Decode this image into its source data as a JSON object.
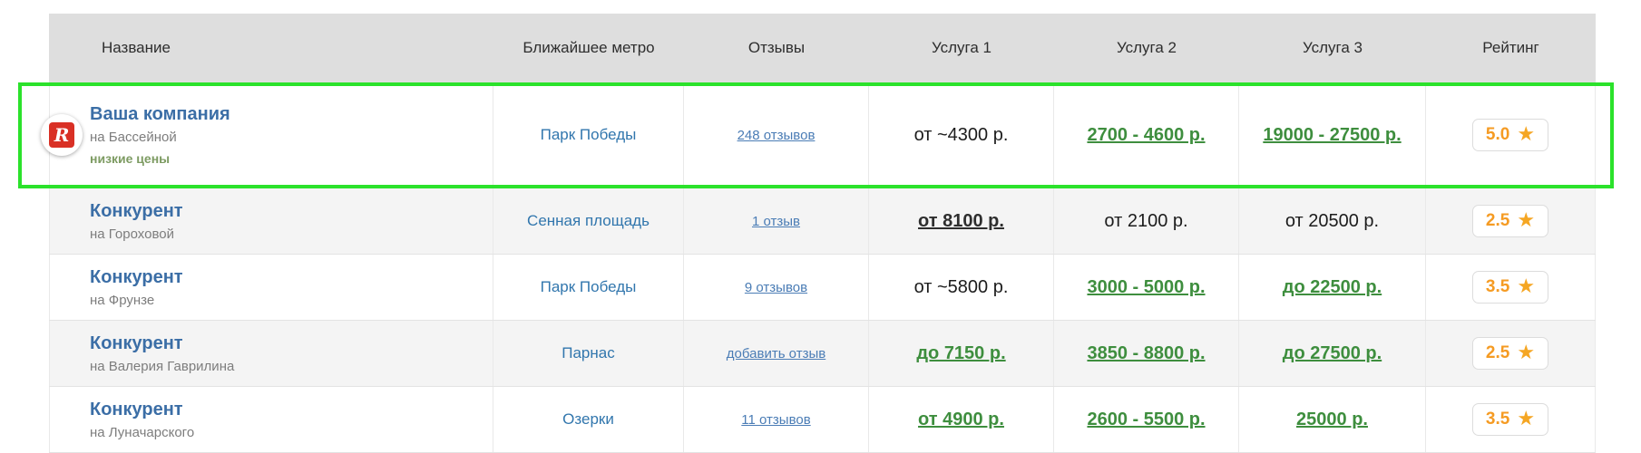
{
  "colors": {
    "highlight_border": "#2be22b",
    "header_bg": "#dedede",
    "zebra_bg": "#f4f4f4",
    "name_blue": "#3b6ea6",
    "metro_blue": "#3176ad",
    "review_link_blue": "#4a7cb5",
    "price_green": "#3e8e3e",
    "rating_orange": "#f59b23",
    "badge_green": "#7d9b62",
    "logo_red": "#d93025"
  },
  "table": {
    "star_glyph": "★",
    "headers": [
      "Название",
      "Ближайшее метро",
      "Отзывы",
      "Услуга 1",
      "Услуга 2",
      "Услуга 3",
      "Рейтинг"
    ],
    "rows": [
      {
        "highlighted": true,
        "logo_letter": "R",
        "name": "Ваша компания",
        "branch": "на Бассейной",
        "badge": "низкие цены",
        "metro": "Парк Победы",
        "reviews": "248 отзывов",
        "service1": {
          "text": "от ~4300 р.",
          "style": "plain"
        },
        "service2": {
          "text": "2700 - 4600 р.",
          "style": "green-link"
        },
        "service3": {
          "text": "19000 - 27500 р.",
          "style": "green-link"
        },
        "rating": "5.0"
      },
      {
        "highlighted": false,
        "name": "Конкурент",
        "branch": "на Гороховой",
        "metro": "Сенная площадь",
        "reviews": "1 отзыв",
        "service1": {
          "text": "от 8100 р.",
          "style": "dark-link"
        },
        "service2": {
          "text": "от 2100 р.",
          "style": "plain"
        },
        "service3": {
          "text": "от 20500 р.",
          "style": "plain"
        },
        "rating": "2.5"
      },
      {
        "highlighted": false,
        "name": "Конкурент",
        "branch": "на Фрунзе",
        "metro": "Парк Победы",
        "reviews": "9 отзывов",
        "service1": {
          "text": "от ~5800 р.",
          "style": "plain"
        },
        "service2": {
          "text": "3000 - 5000 р.",
          "style": "green-link"
        },
        "service3": {
          "text": "до 22500 р.",
          "style": "green-link"
        },
        "rating": "3.5"
      },
      {
        "highlighted": false,
        "name": "Конкурент",
        "branch": "на Валерия Гаврилина",
        "metro": "Парнас",
        "reviews": "добавить отзыв",
        "service1": {
          "text": "до 7150 р.",
          "style": "green-link"
        },
        "service2": {
          "text": "3850 - 8800 р.",
          "style": "green-link"
        },
        "service3": {
          "text": "до 27500 р.",
          "style": "green-link"
        },
        "rating": "2.5"
      },
      {
        "highlighted": false,
        "name": "Конкурент",
        "branch": "на Луначарского",
        "metro": "Озерки",
        "reviews": "11 отзывов",
        "service1": {
          "text": "от 4900 р.",
          "style": "green-link"
        },
        "service2": {
          "text": "2600 - 5500 р.",
          "style": "green-link"
        },
        "service3": {
          "text": "25000 р.",
          "style": "green-link"
        },
        "rating": "3.5"
      }
    ]
  }
}
